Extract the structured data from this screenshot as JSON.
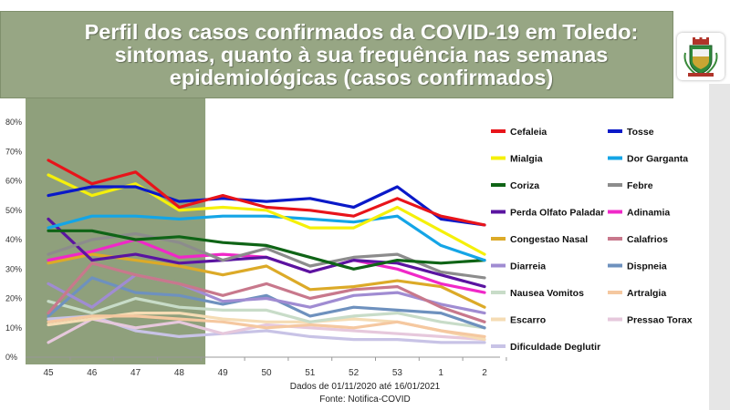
{
  "title": "Perfil dos casos confirmados da COVID-19 em Toledo: sintomas, quanto à sua frequência nas semanas epidemiológicas (casos confirmados)",
  "caption": {
    "line1": "Dados de 01/11/2020 até 16/01/2021",
    "line2": "Fonte: Notifica-COVID"
  },
  "colors": {
    "title_bg": "#97a684",
    "shaded_region": "#8fa07c"
  },
  "chart_data": {
    "type": "line",
    "x": [
      "45",
      "46",
      "47",
      "48",
      "49",
      "50",
      "51",
      "52",
      "53",
      "1",
      "2"
    ],
    "ylim": [
      0,
      80
    ],
    "yticks": [
      "0%",
      "10%",
      "20%",
      "30%",
      "40%",
      "50%",
      "60%",
      "70%",
      "80%"
    ],
    "shaded_x_range": [
      "45",
      "48"
    ],
    "grid": false,
    "legend_position": "right",
    "series": [
      {
        "name": "Cefaleia",
        "color": "#e8141a",
        "values": [
          67,
          59,
          63,
          51,
          55,
          51,
          50,
          48,
          54,
          48,
          45
        ]
      },
      {
        "name": "Tosse",
        "color": "#0a19c8",
        "values": [
          55,
          58,
          58,
          53,
          54,
          53,
          54,
          51,
          58,
          47,
          45
        ]
      },
      {
        "name": "Mialgia",
        "color": "#f5f00a",
        "values": [
          62,
          55,
          59,
          50,
          51,
          50,
          44,
          44,
          51,
          43,
          35
        ]
      },
      {
        "name": "Dor Garganta",
        "color": "#14a5e6",
        "values": [
          44,
          48,
          48,
          47,
          48,
          48,
          47,
          46,
          48,
          38,
          33
        ]
      },
      {
        "name": "Coriza",
        "color": "#0f6416",
        "values": [
          43,
          43,
          40,
          41,
          39,
          38,
          34,
          30,
          33,
          32,
          33
        ]
      },
      {
        "name": "Febre",
        "color": "#8c8c8c",
        "values": [
          35,
          40,
          42,
          39,
          33,
          37,
          31,
          34,
          35,
          29,
          27
        ]
      },
      {
        "name": "Perda Olfato Paladar",
        "color": "#5a14a0",
        "values": [
          47,
          33,
          35,
          32,
          33,
          34,
          29,
          33,
          32,
          28,
          24
        ]
      },
      {
        "name": "Adinamia",
        "color": "#f028c8",
        "values": [
          33,
          36,
          40,
          34,
          35,
          34,
          29,
          33,
          30,
          25,
          22
        ]
      },
      {
        "name": "Congestao Nasal",
        "color": "#dcaa28",
        "values": [
          32,
          35,
          33,
          31,
          28,
          31,
          23,
          24,
          26,
          24,
          17
        ]
      },
      {
        "name": "Calafrios",
        "color": "#c8788c",
        "values": [
          15,
          32,
          28,
          25,
          21,
          25,
          20,
          23,
          24,
          17,
          12
        ]
      },
      {
        "name": "Diarreia",
        "color": "#a08cd2",
        "values": [
          25,
          17,
          28,
          25,
          19,
          20,
          17,
          21,
          22,
          18,
          15
        ]
      },
      {
        "name": "Dispneia",
        "color": "#6e91be",
        "values": [
          14,
          27,
          22,
          21,
          18,
          21,
          14,
          17,
          16,
          15,
          10
        ]
      },
      {
        "name": "Nausea Vomitos",
        "color": "#c8dcc8",
        "values": [
          19,
          15,
          20,
          17,
          16,
          16,
          12,
          14,
          15,
          12,
          10
        ]
      },
      {
        "name": "Artralgia",
        "color": "#f5c8a0",
        "values": [
          12,
          14,
          14,
          13,
          12,
          10,
          11,
          10,
          12,
          9,
          7
        ]
      },
      {
        "name": "Escarro",
        "color": "#f5dcb4",
        "values": [
          11,
          13,
          15,
          15,
          13,
          12,
          12,
          13,
          12,
          9,
          6
        ]
      },
      {
        "name": "Pressao Torax",
        "color": "#e6c8dc",
        "values": [
          5,
          13,
          10,
          12,
          8,
          11,
          10,
          9,
          8,
          7,
          6
        ]
      },
      {
        "name": "Dificuldade Deglutir",
        "color": "#c8c3e6",
        "values": [
          13,
          14,
          9,
          7,
          8,
          9,
          7,
          6,
          6,
          5,
          5
        ]
      }
    ]
  }
}
